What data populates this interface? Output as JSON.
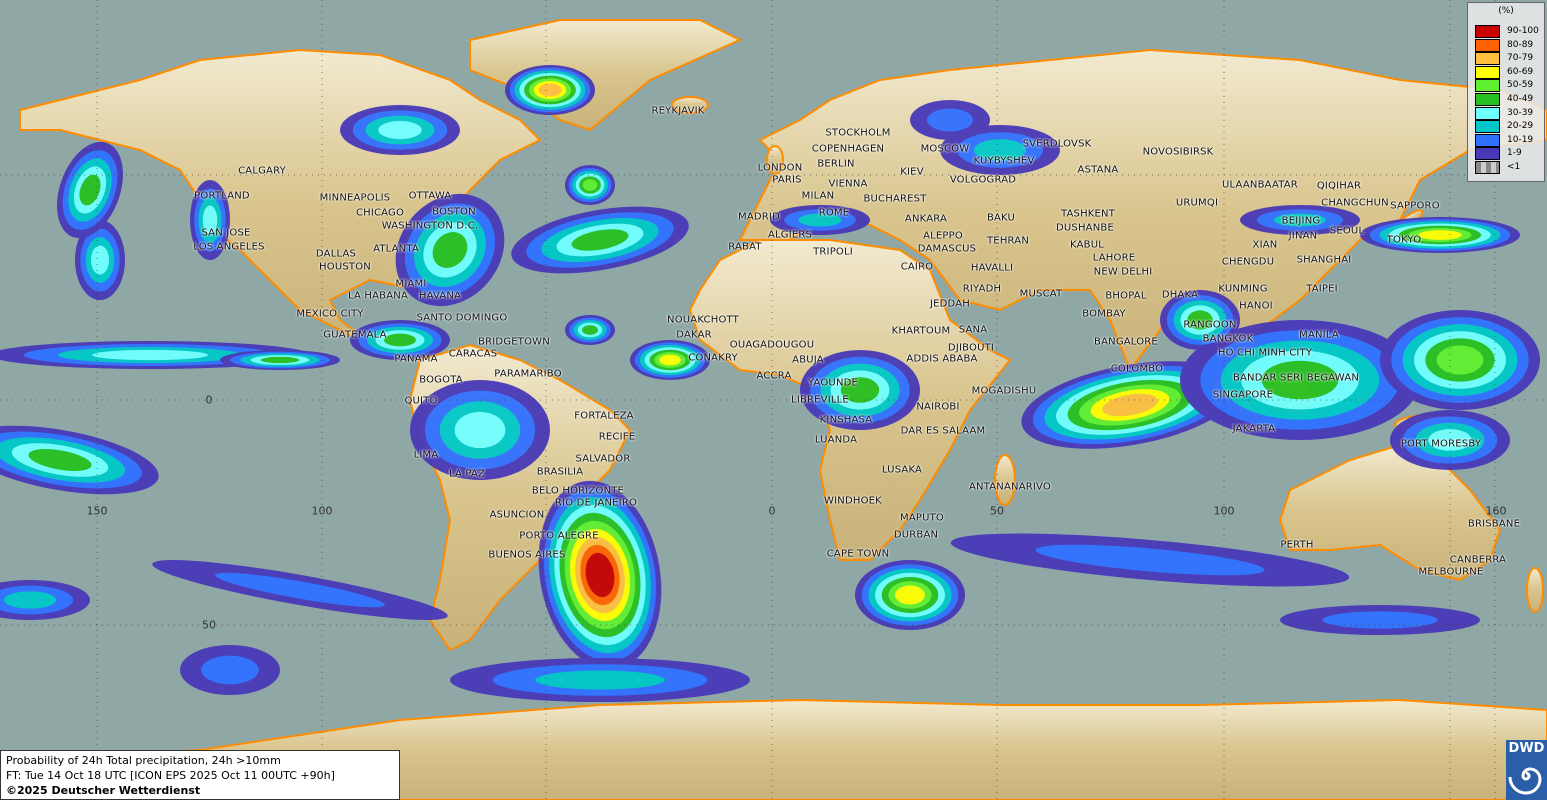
{
  "legend": {
    "unit": "(%)",
    "items": [
      {
        "label": "90-100",
        "color": "#c80000"
      },
      {
        "label": "80-89",
        "color": "#ff6400"
      },
      {
        "label": "70-79",
        "color": "#ffc040"
      },
      {
        "label": "60-69",
        "color": "#ffff00"
      },
      {
        "label": "50-59",
        "color": "#60f030"
      },
      {
        "label": "40-49",
        "color": "#28c020"
      },
      {
        "label": "30-39",
        "color": "#70ffff"
      },
      {
        "label": "20-29",
        "color": "#00c8c8"
      },
      {
        "label": "10-19",
        "color": "#3070ff"
      },
      {
        "label": "1-9",
        "color": "#4838b8"
      },
      {
        "label": "<1",
        "color": "#a0a0a0"
      }
    ]
  },
  "info": {
    "title": "Probability of 24h Total precipitation, 24h >10mm",
    "forecast": "FT: Tue 14 Oct 18 UTC [ICON EPS 2025 Oct 11 00UTC +90h]",
    "copyright": "©2025 Deutscher Wetterdienst"
  },
  "logo": {
    "text": "DWD"
  },
  "axes": {
    "lon_labels": [
      "150",
      "100",
      "0",
      "50",
      "100",
      "160"
    ],
    "lat_labels": [
      "0",
      "50"
    ]
  },
  "colors": {
    "ocean": "#8fa8a6",
    "coastline": "#ff8c00",
    "land": "#e6d8a8"
  },
  "cities": [
    "REYKJAVIK",
    "STOCKHOLM",
    "COPENHAGEN",
    "MOSCOW",
    "SVERDLOVSK",
    "KUYBYSHEV",
    "BERLIN",
    "LONDON",
    "PARIS",
    "KIEV",
    "NOVOSIBIRSK",
    "ASTANA",
    "VIENNA",
    "VOLGOGRAD",
    "ULAANBAATAR",
    "QIQIHAR",
    "MILAN",
    "BUCHAREST",
    "URUMQI",
    "CHANGCHUN",
    "SAPPORO",
    "MADRID",
    "ROME",
    "ANKARA",
    "BAKU",
    "TASHKENT",
    "DUSHANBE",
    "BEIJING",
    "JINAN",
    "SEOUL",
    "TOKYO",
    "ALGIERS",
    "ALEPPO",
    "TEHRAN",
    "KABUL",
    "XIAN",
    "RABAT",
    "TRIPOLI",
    "DAMASCUS",
    "LAHORE",
    "CHENGDU",
    "SHANGHAI",
    "CAIRO",
    "HAVALLI",
    "NEW DELHI",
    "RIYADH",
    "MUSCAT",
    "DHAKA",
    "KUNMING",
    "TAIPEI",
    "HANOI",
    "BHOPAL",
    "JEDDAH",
    "BOMBAY",
    "RANGOON",
    "KHARTOUM",
    "SANA",
    "BANGKOK",
    "MANILA",
    "DJIBOUTI",
    "ADDIS ABABA",
    "BANGALORE",
    "HO CHI MINH CITY",
    "COLOMBO",
    "BANDAR SERI BEGAWAN",
    "SINGAPORE",
    "MOGADISHU",
    "NAIROBI",
    "JAKARTA",
    "PORT MORESBY",
    "DAR ES SALAAM",
    "LUSAKA",
    "ANTANANARIVO",
    "WINDHOEK",
    "MAPUTO",
    "DURBAN",
    "CAPE TOWN",
    "PERTH",
    "BRISBANE",
    "CANBERRA",
    "MELBOURNE",
    "NOUAKCHOTT",
    "DAKAR",
    "CONAKRY",
    "OUAGADOUGOU",
    "ABUJA",
    "ACCRA",
    "YAOUNDE",
    "LIBREVILLE",
    "KINSHASA",
    "LUANDA",
    "CALGARY",
    "PORTLAND",
    "MINNEAPOLIS",
    "OTTAWA",
    "CHICAGO",
    "BOSTON",
    "SAN JOSE",
    "WASHINGTON D.C.",
    "LOS ANGELES",
    "ATLANTA",
    "DALLAS",
    "HOUSTON",
    "MIAMI",
    "LA HABANA",
    "HAVANA",
    "MEXICO CITY",
    "SANTO DOMINGO",
    "GUATEMALA",
    "BRIDGETOWN",
    "PANAMA",
    "CARACAS",
    "BOGOTA",
    "PARAMARIBO",
    "QUITO",
    "FORTALEZA",
    "RECIFE",
    "LIMA",
    "SALVADOR",
    "LA PAZ",
    "BRASILIA",
    "BELO HORIZONTE",
    "RIO DE JANEIRO",
    "ASUNCION",
    "PORTO ALEGRE",
    "BUENOS AIRES"
  ]
}
